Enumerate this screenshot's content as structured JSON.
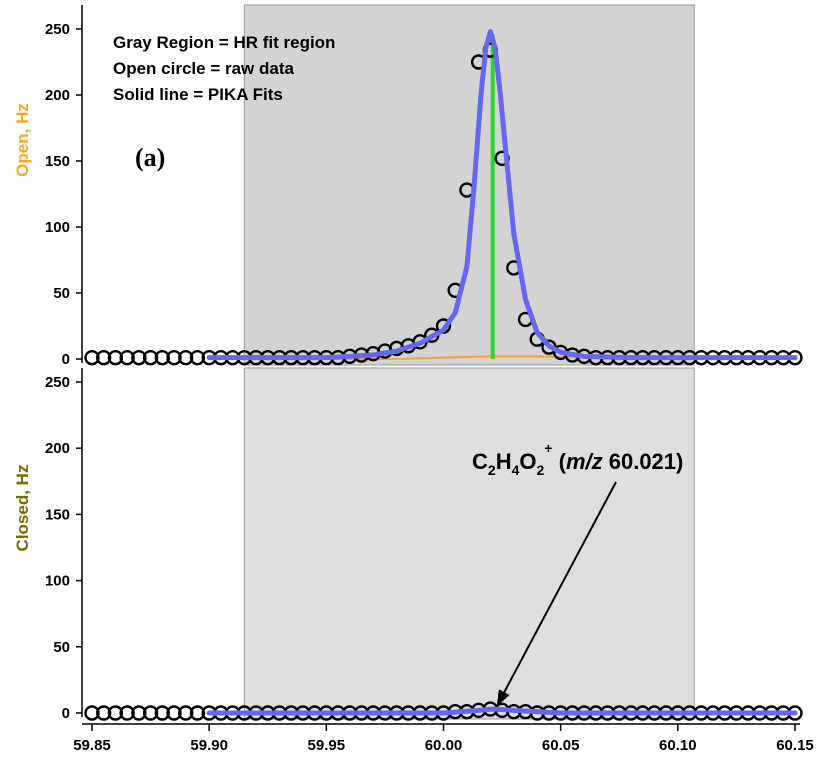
{
  "chart_data": [
    {
      "type": "line",
      "panel_label": "(a)",
      "ylabel": "Open, Hz",
      "ylabel_color": "#f5a623",
      "ylim": [
        0,
        260
      ],
      "y_ticks": [
        0,
        50,
        100,
        150,
        200,
        250
      ],
      "xlim": [
        59.85,
        60.15
      ],
      "legend_lines": [
        "Gray Region = HR fit region",
        "Open circle = raw data",
        "Solid line = PIKA Fits"
      ],
      "fit_region": [
        59.915,
        60.107
      ],
      "fit_region_color": "#d3d3d3",
      "series": [
        {
          "kind": "scatter",
          "x": [
            59.85,
            59.855,
            59.86,
            59.865,
            59.87,
            59.875,
            59.88,
            59.885,
            59.89,
            59.895,
            59.9,
            59.905,
            59.91,
            59.915,
            59.92,
            59.925,
            59.93,
            59.935,
            59.94,
            59.945,
            59.95,
            59.955,
            59.96,
            59.965,
            59.97,
            59.975,
            59.98,
            59.985,
            59.99,
            59.995,
            60.0,
            60.005,
            60.01,
            60.015,
            60.02,
            60.025,
            60.03,
            60.035,
            60.04,
            60.045,
            60.05,
            60.055,
            60.06,
            60.065,
            60.07,
            60.075,
            60.08,
            60.085,
            60.09,
            60.095,
            60.1,
            60.105,
            60.11,
            60.115,
            60.12,
            60.125,
            60.13,
            60.135,
            60.14,
            60.145,
            60.15
          ],
          "values": [
            1,
            1,
            1,
            1,
            1,
            1,
            1,
            1,
            1,
            1,
            1,
            1,
            1,
            1,
            1,
            1,
            1,
            1,
            1,
            1,
            1,
            1,
            2,
            3,
            4,
            6,
            8,
            10,
            13,
            18,
            25,
            52,
            128,
            225,
            234,
            152,
            69,
            30,
            15,
            9,
            5,
            3,
            2,
            1,
            1,
            1,
            1,
            1,
            1,
            1,
            1,
            1,
            1,
            1,
            1,
            1,
            1,
            1,
            1,
            1,
            1
          ]
        },
        {
          "kind": "fit",
          "color": "#6666ee",
          "x": [
            59.9,
            59.95,
            59.97,
            59.98,
            59.99,
            60.0,
            60.005,
            60.01,
            60.013,
            60.016,
            60.018,
            60.02,
            60.022,
            60.024,
            60.027,
            60.03,
            60.035,
            60.04,
            60.045,
            60.05,
            60.06,
            60.08,
            60.15
          ],
          "values": [
            1,
            1,
            3,
            6,
            12,
            22,
            35,
            70,
            130,
            200,
            235,
            248,
            236,
            205,
            150,
            95,
            45,
            20,
            10,
            5,
            2,
            1,
            1
          ]
        },
        {
          "kind": "stick",
          "color": "#22dd22",
          "x": 60.021,
          "value": 246
        },
        {
          "kind": "line",
          "color": "#f5a623",
          "x": [
            59.9,
            59.98,
            60.0,
            60.02,
            60.04,
            60.06,
            60.08,
            60.15
          ],
          "values": [
            0,
            0,
            1,
            2,
            2,
            1,
            0,
            0
          ]
        }
      ]
    },
    {
      "type": "line",
      "ylabel": "Closed, Hz",
      "ylabel_color": "#7a6a00",
      "ylim": [
        0,
        260
      ],
      "y_ticks": [
        0,
        50,
        100,
        150,
        200,
        250
      ],
      "xlim": [
        59.85,
        60.15
      ],
      "x_ticks": [
        "59.85",
        "59.90",
        "59.95",
        "60.00",
        "60.05",
        "60.10",
        "60.15"
      ],
      "fit_region": [
        59.915,
        60.107
      ],
      "fit_region_color": "#dedede",
      "annotation": {
        "parts": [
          {
            "text": "C",
            "style": "normal"
          },
          {
            "text": "2",
            "style": "sub"
          },
          {
            "text": "H",
            "style": "normal"
          },
          {
            "text": "4",
            "style": "sub"
          },
          {
            "text": "O",
            "style": "normal"
          },
          {
            "text": "2",
            "style": "sub"
          },
          {
            "text": "+",
            "style": "sup"
          },
          {
            "text": " (",
            "style": "normal"
          },
          {
            "text": "m/z",
            "style": "italic"
          },
          {
            "text": " 60.021)",
            "style": "normal"
          }
        ],
        "arrow_target_x": 60.021,
        "arrow_target_y": 2
      },
      "series": [
        {
          "kind": "scatter",
          "x": [
            59.85,
            59.855,
            59.86,
            59.865,
            59.87,
            59.875,
            59.88,
            59.885,
            59.89,
            59.895,
            59.9,
            59.905,
            59.91,
            59.915,
            59.92,
            59.925,
            59.93,
            59.935,
            59.94,
            59.945,
            59.95,
            59.955,
            59.96,
            59.965,
            59.97,
            59.975,
            59.98,
            59.985,
            59.99,
            59.995,
            60.0,
            60.005,
            60.01,
            60.015,
            60.02,
            60.025,
            60.03,
            60.035,
            60.04,
            60.045,
            60.05,
            60.055,
            60.06,
            60.065,
            60.07,
            60.075,
            60.08,
            60.085,
            60.09,
            60.095,
            60.1,
            60.105,
            60.11,
            60.115,
            60.12,
            60.125,
            60.13,
            60.135,
            60.14,
            60.145,
            60.15
          ],
          "values": [
            0,
            0,
            0,
            0,
            0,
            0,
            0,
            0,
            0,
            0,
            0,
            0,
            0,
            0,
            0,
            0,
            0,
            0,
            0,
            0,
            0,
            0,
            0,
            0,
            0,
            0,
            0,
            0,
            0,
            0,
            0,
            1,
            1,
            2,
            3,
            2,
            1,
            1,
            0,
            0,
            0,
            0,
            0,
            0,
            0,
            0,
            0,
            0,
            0,
            0,
            0,
            0,
            0,
            0,
            0,
            0,
            0,
            0,
            0,
            0,
            0
          ]
        },
        {
          "kind": "fit",
          "color": "#6666ee",
          "x": [
            59.9,
            60.0,
            60.015,
            60.021,
            60.03,
            60.05,
            60.15
          ],
          "values": [
            0,
            0,
            2,
            3,
            2,
            0,
            0
          ]
        }
      ]
    }
  ]
}
